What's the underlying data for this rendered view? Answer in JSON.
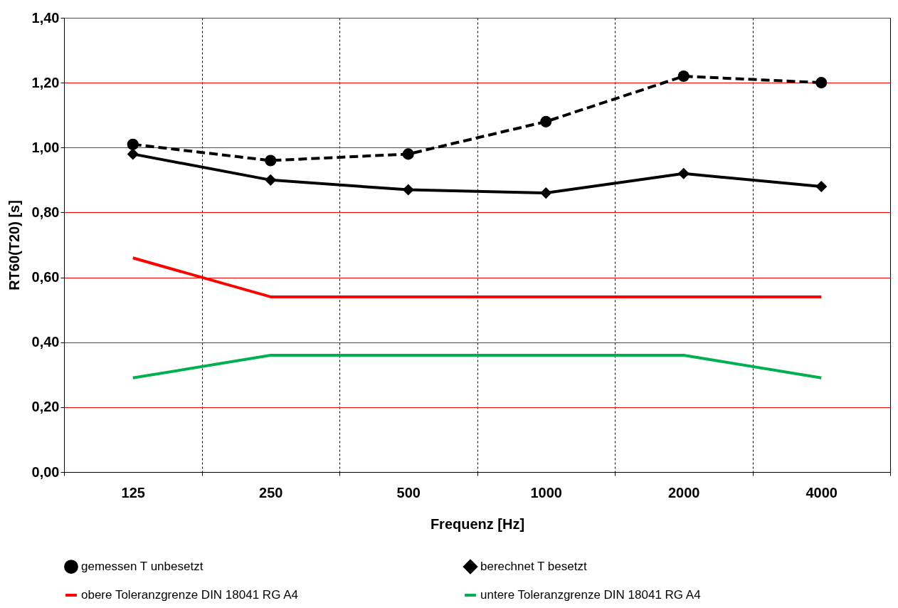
{
  "chart_data": {
    "type": "line",
    "xlabel": "Frequenz [Hz]",
    "ylabel": "RT60(T20) [s]",
    "categories": [
      "125",
      "250",
      "500",
      "1000",
      "2000",
      "4000"
    ],
    "ylim": [
      0,
      1.4
    ],
    "yticks": [
      {
        "value": 0,
        "label": "0,00"
      },
      {
        "value": 0.2,
        "label": "0,20"
      },
      {
        "value": 0.4,
        "label": "0,40"
      },
      {
        "value": 0.6,
        "label": "0,60"
      },
      {
        "value": 0.8,
        "label": "0,80"
      },
      {
        "value": 1.0,
        "label": "1,00"
      },
      {
        "value": 1.2,
        "label": "1,20"
      },
      {
        "value": 1.4,
        "label": "1,40"
      }
    ],
    "grid": true,
    "legend": "bottom",
    "series": [
      {
        "name": "gemessen T unbesetzt",
        "color": "#000000",
        "line_style": "dashed",
        "marker": "circle",
        "values": [
          1.01,
          0.96,
          0.98,
          1.08,
          1.22,
          1.2
        ]
      },
      {
        "name": "berechnet T besetzt",
        "color": "#000000",
        "line_style": "solid",
        "marker": "diamond",
        "values": [
          0.98,
          0.9,
          0.87,
          0.86,
          0.92,
          0.88
        ]
      },
      {
        "name": "obere  Toleranzgrenze DIN 18041 RG A4",
        "color": "#ff0000",
        "line_style": "solid",
        "marker": "none",
        "values": [
          0.66,
          0.54,
          0.54,
          0.54,
          0.54,
          0.54
        ]
      },
      {
        "name": "untere Toleranzgrenze DIN 18041 RG A4",
        "color": "#00b050",
        "line_style": "solid",
        "marker": "none",
        "values": [
          0.29,
          0.36,
          0.36,
          0.36,
          0.36,
          0.29
        ]
      }
    ]
  }
}
